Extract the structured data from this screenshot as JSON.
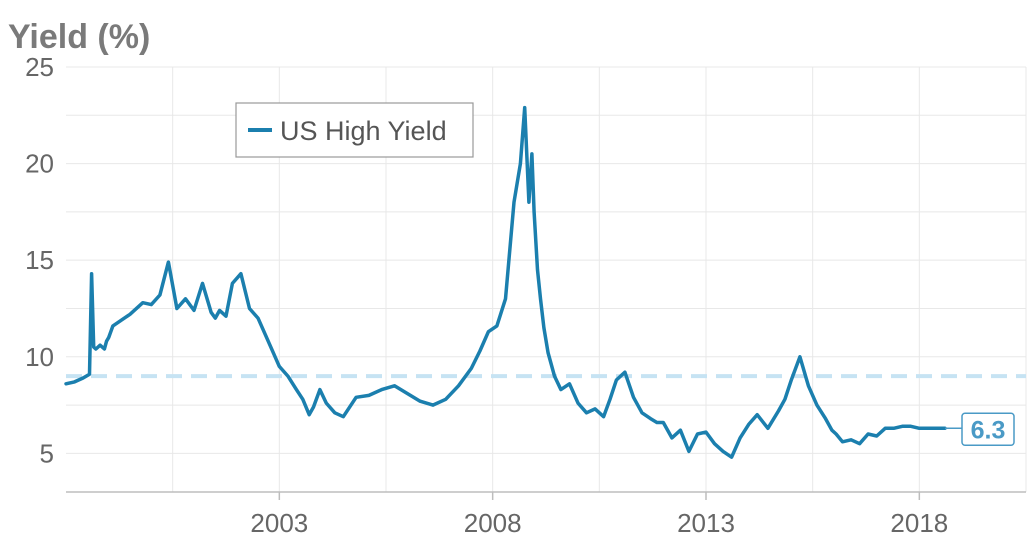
{
  "chart_data": {
    "type": "line",
    "ylabel": "Yield (%)",
    "xlim": [
      1998.0,
      2020.5
    ],
    "ylim": [
      3,
      25
    ],
    "y_ticks": [
      5,
      10,
      15,
      20,
      25
    ],
    "x_ticks": [
      2003,
      2008,
      2013,
      2018
    ],
    "grid": true,
    "legend": {
      "placement": "top-left"
    },
    "series": [
      {
        "name": "US High Yield",
        "color": "#1b7fae",
        "x": [
          1998.0,
          1998.2,
          1998.4,
          1998.55,
          1998.6,
          1998.65,
          1998.7,
          1998.8,
          1998.9,
          1998.95,
          1999.0,
          1999.05,
          1999.1,
          1999.3,
          1999.5,
          1999.8,
          2000.0,
          2000.2,
          2000.4,
          2000.6,
          2000.8,
          2001.0,
          2001.2,
          2001.4,
          2001.5,
          2001.6,
          2001.75,
          2001.9,
          2002.1,
          2002.3,
          2002.5,
          2002.8,
          2003.0,
          2003.2,
          2003.4,
          2003.55,
          2003.7,
          2003.8,
          2003.95,
          2004.1,
          2004.3,
          2004.5,
          2004.8,
          2005.1,
          2005.4,
          2005.7,
          2006.0,
          2006.3,
          2006.6,
          2006.9,
          2007.2,
          2007.5,
          2007.7,
          2007.9,
          2008.1,
          2008.3,
          2008.5,
          2008.65,
          2008.75,
          2008.85,
          2008.92,
          2008.97,
          2009.05,
          2009.12,
          2009.2,
          2009.3,
          2009.45,
          2009.6,
          2009.8,
          2010.0,
          2010.2,
          2010.4,
          2010.6,
          2010.75,
          2010.9,
          2011.1,
          2011.3,
          2011.5,
          2011.7,
          2011.85,
          2012.0,
          2012.2,
          2012.4,
          2012.6,
          2012.8,
          2013.0,
          2013.2,
          2013.4,
          2013.6,
          2013.8,
          2014.0,
          2014.2,
          2014.45,
          2014.7,
          2014.85,
          2015.0,
          2015.2,
          2015.4,
          2015.6,
          2015.8,
          2015.95,
          2016.05,
          2016.2,
          2016.4,
          2016.6,
          2016.8,
          2017.0,
          2017.2,
          2017.4,
          2017.6,
          2017.8,
          2018.0,
          2018.2,
          2018.4,
          2018.6
        ],
        "values": [
          8.6,
          8.7,
          8.9,
          9.1,
          14.3,
          10.5,
          10.4,
          10.6,
          10.4,
          10.8,
          11.0,
          11.3,
          11.6,
          11.9,
          12.2,
          12.8,
          12.7,
          13.2,
          14.9,
          12.5,
          13.0,
          12.4,
          13.8,
          12.3,
          12.0,
          12.4,
          12.1,
          13.8,
          14.3,
          12.5,
          12.0,
          10.5,
          9.5,
          9.0,
          8.3,
          7.8,
          7.0,
          7.4,
          8.3,
          7.6,
          7.1,
          6.9,
          7.9,
          8.0,
          8.3,
          8.5,
          8.1,
          7.7,
          7.5,
          7.8,
          8.5,
          9.4,
          10.3,
          11.3,
          11.6,
          13.0,
          18.0,
          20.0,
          22.9,
          18.0,
          20.5,
          17.5,
          14.5,
          13.0,
          11.5,
          10.2,
          9.0,
          8.3,
          8.6,
          7.6,
          7.1,
          7.3,
          6.9,
          7.8,
          8.8,
          9.2,
          7.9,
          7.1,
          6.8,
          6.6,
          6.6,
          5.8,
          6.2,
          5.1,
          6.0,
          6.1,
          5.5,
          5.1,
          4.8,
          5.8,
          6.5,
          7.0,
          6.3,
          7.2,
          7.8,
          8.8,
          10.0,
          8.5,
          7.5,
          6.8,
          6.2,
          6.0,
          5.6,
          5.7,
          5.5,
          6.0,
          5.9,
          6.3,
          6.3,
          6.4,
          6.4,
          6.3,
          6.3,
          6.3,
          6.3
        ]
      }
    ],
    "reference_line": {
      "value": 9,
      "color": "#c6e3f3",
      "style": "dashed"
    },
    "end_label": {
      "text": "6.3",
      "color": "#4a9ac6"
    }
  }
}
